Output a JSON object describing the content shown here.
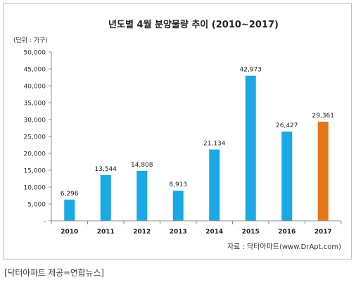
{
  "chart_data": {
    "type": "bar",
    "title": "년도별 4월 분양물량 추이 (2010~2017)",
    "unit_label": "(단위 : 가구)",
    "source": "자료 : 닥터아파트(www.DrApt.com)",
    "categories": [
      "2010",
      "2011",
      "2012",
      "2013",
      "2014",
      "2015",
      "2016",
      "2017"
    ],
    "values": [
      6296,
      13544,
      14808,
      8913,
      21134,
      42973,
      26427,
      29361
    ],
    "value_labels": [
      "6,296",
      "13,544",
      "14,808",
      "8,913",
      "21,134",
      "42,973",
      "26,427",
      "29,361"
    ],
    "yticks": [
      "-",
      "5,000",
      "10,000",
      "15,000",
      "20,000",
      "25,000",
      "30,000",
      "35,000",
      "40,000",
      "45,000",
      "50,000"
    ],
    "ylim": [
      0,
      50000
    ],
    "grid": false,
    "colors": {
      "default": "#19a9e6",
      "highlight": "#e5761b"
    },
    "highlight_index": 7
  },
  "caption": "[닥터아파트 제공=연합뉴스]"
}
